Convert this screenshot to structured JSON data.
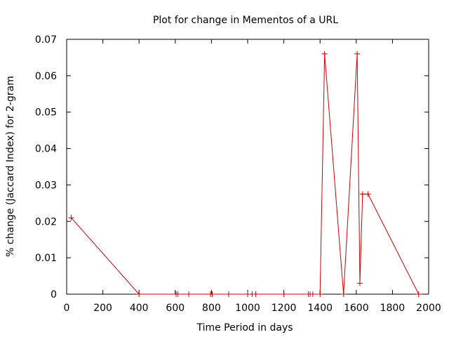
{
  "chart_data": {
    "type": "line",
    "title": "Plot for change in Mementos of a URL",
    "xlabel": "Time Period in days",
    "ylabel": "% change (Jaccard Index) for 2-gram",
    "xlim": [
      0,
      2000
    ],
    "ylim": [
      0,
      0.07
    ],
    "x_ticks": [
      0,
      200,
      400,
      600,
      800,
      1000,
      1200,
      1400,
      1600,
      1800,
      2000
    ],
    "y_ticks": [
      0,
      0.01,
      0.02,
      0.03,
      0.04,
      0.05,
      0.06,
      0.07
    ],
    "grid": false,
    "legend": "none",
    "series": [
      {
        "color": "#cc0000",
        "marker": "plus",
        "x": [
          25,
          400,
          605,
          615,
          675,
          795,
          805,
          895,
          1000,
          1025,
          1045,
          1200,
          1335,
          1345,
          1360,
          1400,
          1425,
          1530,
          1605,
          1620,
          1635,
          1665,
          1945
        ],
        "y": [
          0.021,
          0,
          0,
          0,
          0,
          0,
          0,
          0,
          0,
          0,
          0,
          0,
          0,
          0,
          0,
          0,
          0.066,
          0,
          0.066,
          0.003,
          0.0275,
          0.0275,
          0
        ]
      }
    ]
  }
}
